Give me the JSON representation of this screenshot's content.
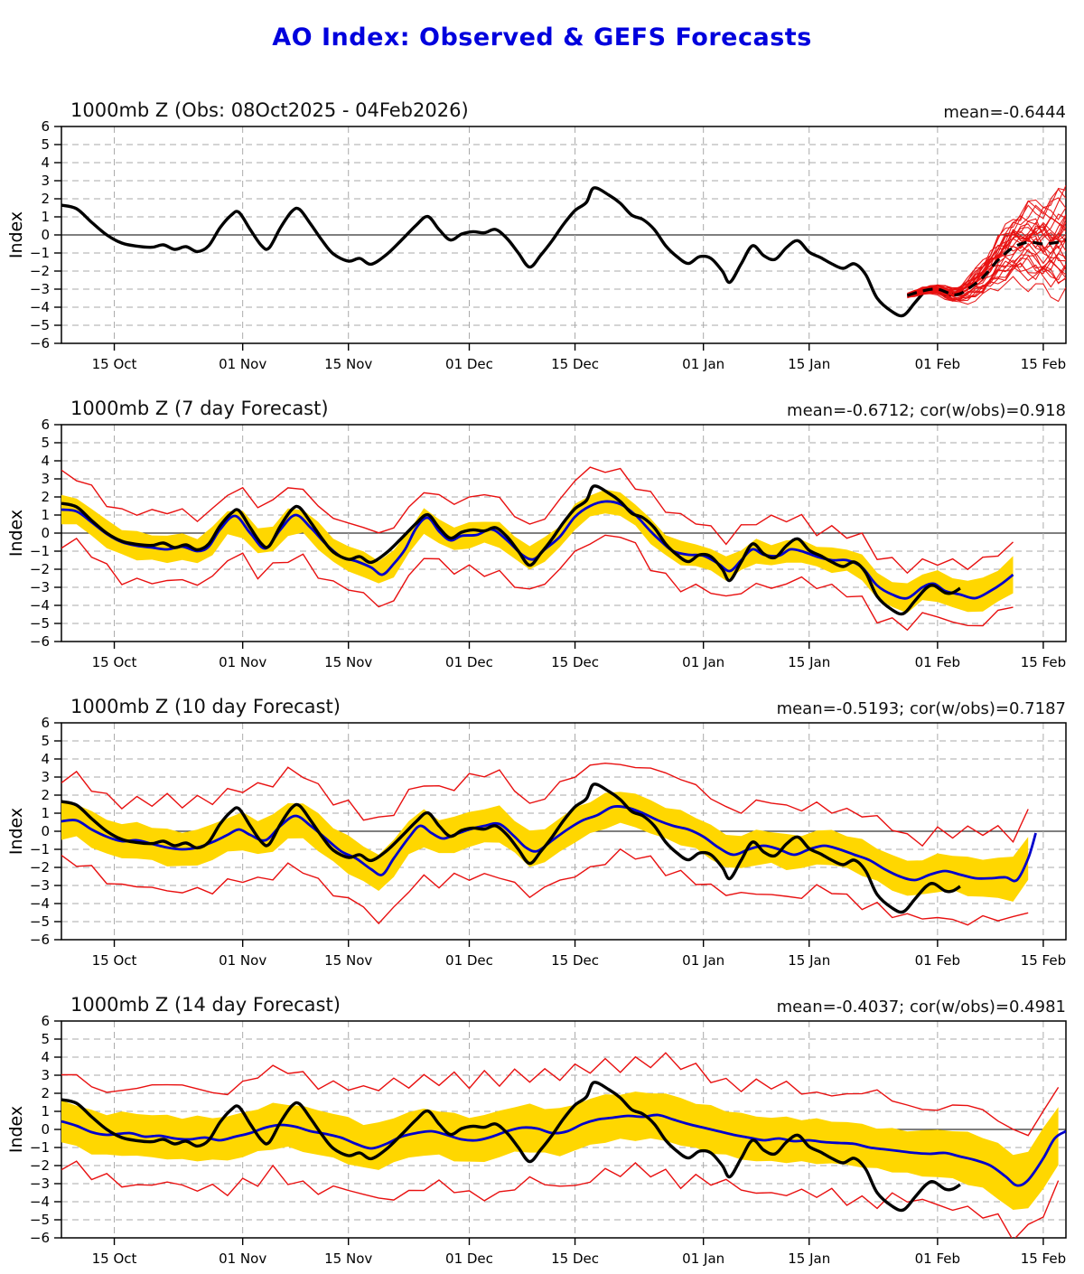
{
  "page_title": "AO Index: Observed & GEFS Forecasts",
  "colors": {
    "title": "#0000dd",
    "observed": "#000000",
    "ensemble_member": "#e81010",
    "envelope": "#e81010",
    "forecast_mean": "#0000cc",
    "band": "#ffd700",
    "grid": "#aaaaaa",
    "zero_line": "#333333",
    "axis": "#000000"
  },
  "chart_data": {
    "type": "line",
    "title": "AO Index: Observed & GEFS Forecasts",
    "shared": {
      "x_axis": {
        "start_date": "08Oct2025",
        "end_date": "18Feb2026",
        "range_days": [
          0,
          133
        ],
        "tick_days": [
          7,
          24,
          38,
          54,
          68,
          85,
          99,
          116,
          130
        ],
        "tick_labels": [
          "15 Oct",
          "01 Nov",
          "15 Nov",
          "01 Dec",
          "15 Dec",
          "01 Jan",
          "15 Jan",
          "01 Feb",
          "15 Feb"
        ],
        "grid": true
      },
      "y_axis": {
        "label": "Index",
        "range": [
          -6,
          6
        ],
        "ticks": [
          -6,
          -5,
          -4,
          -3,
          -2,
          -1,
          0,
          1,
          2,
          3,
          4,
          5,
          6
        ],
        "grid": true
      },
      "observed": {
        "name": "Observed AO index (1000mb Z), 08Oct2025 - 04Feb2026",
        "days": [
          0,
          2,
          4,
          6,
          8,
          10,
          12,
          13.5,
          15,
          16.5,
          18,
          19.5,
          21,
          22.5,
          23.5,
          25,
          26.5,
          27.5,
          29,
          30.5,
          31.5,
          33,
          34.5,
          36,
          38,
          39.5,
          41,
          43,
          45,
          47,
          48.5,
          50,
          51.5,
          53,
          54.5,
          56,
          57.5,
          59,
          60.5,
          62,
          63.5,
          65,
          66.5,
          68,
          69.5,
          70.5,
          72.5,
          74,
          75.5,
          77,
          78.5,
          80,
          81.5,
          83,
          84.5,
          86,
          87.5,
          88.5,
          90,
          91.5,
          93,
          94.5,
          96,
          97.5,
          99,
          100.5,
          102,
          103.5,
          105,
          106.5,
          108,
          110,
          111.5,
          113,
          114.5,
          115.5,
          117,
          118,
          119
        ],
        "values": [
          1.65,
          1.45,
          0.7,
          0.0,
          -0.45,
          -0.62,
          -0.68,
          -0.55,
          -0.8,
          -0.65,
          -0.92,
          -0.6,
          0.4,
          1.1,
          1.25,
          0.3,
          -0.6,
          -0.72,
          0.4,
          1.3,
          1.42,
          0.6,
          -0.3,
          -1.05,
          -1.45,
          -1.3,
          -1.62,
          -1.1,
          -0.3,
          0.55,
          1.02,
          0.3,
          -0.28,
          0.05,
          0.18,
          0.12,
          0.3,
          -0.2,
          -1.0,
          -1.78,
          -1.1,
          -0.3,
          0.6,
          1.35,
          1.8,
          2.6,
          2.2,
          1.75,
          1.1,
          0.85,
          0.3,
          -0.6,
          -1.2,
          -1.58,
          -1.2,
          -1.3,
          -2.0,
          -2.62,
          -1.6,
          -0.6,
          -1.15,
          -1.35,
          -0.7,
          -0.32,
          -0.95,
          -1.25,
          -1.6,
          -1.85,
          -1.6,
          -2.2,
          -3.5,
          -4.25,
          -4.45,
          -3.75,
          -3.05,
          -2.9,
          -3.3,
          -3.3,
          -3.05
        ]
      }
    },
    "panels": [
      {
        "id": "obs-panel",
        "title": "1000mb Z (Obs: 08Oct2025 - 04Feb2026)",
        "stats": "mean=-0.6444",
        "ensemble": {
          "members": 31,
          "days": [
            112,
            114,
            116,
            118,
            119,
            120,
            122,
            124,
            126,
            128,
            130,
            132,
            133
          ],
          "mean": [
            -3.35,
            -3.1,
            -3.0,
            -3.3,
            -3.25,
            -3.0,
            -2.35,
            -1.4,
            -0.7,
            -0.4,
            -0.5,
            -0.4,
            -0.3
          ],
          "spread": [
            0.12,
            0.18,
            0.25,
            0.35,
            0.42,
            0.55,
            0.85,
            1.15,
            1.45,
            1.7,
            1.9,
            2.1,
            2.2
          ]
        }
      },
      {
        "id": "fcst7-panel",
        "title": "1000mb Z (7 day Forecast)",
        "stats": "mean=-0.6712; cor(w/obs)=0.918",
        "forecast": {
          "days": [
            0,
            2,
            4,
            6,
            8,
            10,
            12,
            14,
            16,
            18,
            19.5,
            21,
            23,
            25,
            27,
            29,
            31,
            33,
            35,
            37,
            39,
            41,
            42.5,
            44,
            45.5,
            47,
            48.5,
            50,
            51.5,
            53,
            55,
            57,
            59,
            61,
            62.5,
            64,
            66,
            68,
            70,
            72,
            74,
            76,
            78,
            79.5,
            81,
            83,
            85,
            87,
            88.5,
            90,
            91.5,
            93,
            95,
            96.5,
            98,
            100,
            102,
            104,
            106,
            108,
            110,
            112,
            114,
            115.5,
            117,
            119,
            121,
            123,
            124.5,
            126
          ],
          "mean": [
            1.3,
            1.2,
            0.6,
            -0.05,
            -0.5,
            -0.7,
            -0.8,
            -0.9,
            -0.75,
            -1.0,
            -0.75,
            0.2,
            0.95,
            0.0,
            -0.85,
            0.2,
            1.0,
            0.3,
            -0.6,
            -1.3,
            -1.55,
            -1.9,
            -2.3,
            -1.7,
            -0.9,
            0.3,
            0.85,
            0.1,
            -0.4,
            -0.15,
            -0.1,
            0.2,
            -0.4,
            -1.2,
            -1.45,
            -0.9,
            -0.2,
            0.9,
            1.5,
            1.75,
            1.6,
            1.0,
            0.1,
            -0.5,
            -1.0,
            -1.2,
            -1.25,
            -1.7,
            -2.1,
            -1.5,
            -0.9,
            -1.2,
            -1.25,
            -0.9,
            -1.0,
            -1.3,
            -1.5,
            -1.5,
            -1.9,
            -2.9,
            -3.4,
            -3.6,
            -3.0,
            -2.8,
            -3.2,
            -3.4,
            -3.6,
            -3.2,
            -2.8,
            -2.3
          ],
          "band_halfwidth": {
            "days": [
              0,
              60,
              100,
              119,
              126
            ],
            "w": [
              0.75,
              0.65,
              0.6,
              0.85,
              0.95
            ]
          },
          "envelope_halfwidth": {
            "days": [
              0,
              30,
              60,
              90,
              110,
              119,
              126
            ],
            "w": [
              1.9,
              1.85,
              1.95,
              1.8,
              1.6,
              1.55,
              1.8
            ]
          },
          "envelope_wiggle": 0.28
        }
      },
      {
        "id": "fcst10-panel",
        "title": "1000mb Z (10 day Forecast)",
        "stats": "mean=-0.5193; cor(w/obs)=0.7187",
        "forecast": {
          "days": [
            0,
            2,
            4,
            6,
            8,
            10,
            12,
            14,
            16,
            18,
            20,
            22,
            23.5,
            25,
            27,
            29,
            31,
            33,
            35,
            37,
            39,
            41,
            42.5,
            44,
            46,
            47.5,
            49,
            50.5,
            52,
            54,
            56,
            58,
            60,
            61.5,
            63,
            65,
            67,
            69,
            71,
            73,
            75,
            77,
            79,
            81,
            83,
            85,
            87,
            89,
            91,
            93,
            95,
            97,
            99,
            101,
            103,
            105,
            107,
            109,
            111,
            113,
            115,
            117,
            119,
            121,
            123,
            125,
            126.5,
            128,
            129
          ],
          "mean": [
            0.55,
            0.6,
            0.1,
            -0.3,
            -0.55,
            -0.5,
            -0.7,
            -0.9,
            -1.0,
            -0.9,
            -0.6,
            -0.2,
            0.1,
            -0.2,
            -0.5,
            0.3,
            0.85,
            0.3,
            -0.4,
            -1.1,
            -1.5,
            -2.1,
            -2.4,
            -1.5,
            -0.35,
            0.3,
            -0.1,
            -0.4,
            -0.2,
            0.1,
            0.3,
            0.4,
            -0.3,
            -0.9,
            -1.1,
            -0.5,
            0.1,
            0.6,
            0.9,
            1.35,
            1.3,
            1.0,
            0.6,
            0.3,
            0.1,
            -0.3,
            -0.9,
            -1.3,
            -1.0,
            -0.8,
            -1.0,
            -1.3,
            -1.0,
            -0.8,
            -1.0,
            -1.3,
            -1.6,
            -2.1,
            -2.5,
            -2.7,
            -2.4,
            -2.2,
            -2.4,
            -2.6,
            -2.6,
            -2.55,
            -2.7,
            -1.5,
            -0.1
          ],
          "band_halfwidth": {
            "days": [
              0,
              40,
              80,
              110,
              122,
              129
            ],
            "w": [
              0.95,
              1.0,
              0.9,
              0.95,
              1.05,
              1.3
            ]
          },
          "envelope_halfwidth": {
            "days": [
              0,
              30,
              60,
              90,
              115,
              129
            ],
            "w": [
              2.3,
              2.6,
              2.7,
              2.5,
              2.3,
              2.6
            ]
          },
          "envelope_wiggle": 0.3
        }
      },
      {
        "id": "fcst14-panel",
        "title": "1000mb Z (14 day Forecast)",
        "stats": "mean=-0.4037; cor(w/obs)=0.4981",
        "forecast": {
          "days": [
            0,
            2,
            4,
            6,
            9,
            11,
            13,
            15,
            17,
            19,
            21,
            23,
            25,
            27,
            29,
            31,
            33,
            35,
            37,
            39,
            41,
            43,
            45,
            47,
            49,
            51,
            53,
            55,
            57,
            59,
            61,
            63,
            65,
            67,
            69,
            71,
            73,
            75,
            77,
            79,
            81,
            83,
            85,
            87,
            89,
            91,
            93,
            95,
            97,
            99,
            101,
            103,
            105,
            107,
            109,
            111,
            113,
            115,
            117,
            119,
            121,
            123,
            125,
            126.5,
            128,
            130,
            131.5,
            133
          ],
          "mean": [
            0.45,
            0.2,
            -0.15,
            -0.3,
            -0.2,
            -0.4,
            -0.35,
            -0.5,
            -0.55,
            -0.45,
            -0.6,
            -0.4,
            -0.2,
            0.1,
            0.25,
            0.15,
            -0.1,
            -0.25,
            -0.45,
            -0.8,
            -1.05,
            -0.8,
            -0.4,
            -0.2,
            -0.1,
            -0.3,
            -0.55,
            -0.6,
            -0.4,
            -0.1,
            0.1,
            0.05,
            -0.2,
            -0.1,
            0.3,
            0.55,
            0.65,
            0.75,
            0.7,
            0.8,
            0.55,
            0.3,
            0.1,
            -0.1,
            -0.3,
            -0.45,
            -0.6,
            -0.5,
            -0.65,
            -0.6,
            -0.7,
            -0.75,
            -0.8,
            -1.0,
            -1.1,
            -1.2,
            -1.3,
            -1.35,
            -1.3,
            -1.5,
            -1.7,
            -2.0,
            -2.6,
            -3.1,
            -2.8,
            -1.6,
            -0.5,
            -0.1
          ],
          "band_halfwidth": {
            "days": [
              0,
              40,
              80,
              110,
              122,
              133
            ],
            "w": [
              1.15,
              1.25,
              1.3,
              1.15,
              1.45,
              1.7
            ]
          },
          "envelope_halfwidth": {
            "days": [
              0,
              30,
              60,
              90,
              115,
              126,
              133
            ],
            "w": [
              2.5,
              2.9,
              3.1,
              3.0,
              2.7,
              2.9,
              2.6
            ]
          },
          "envelope_wiggle": 0.35
        }
      }
    ]
  }
}
